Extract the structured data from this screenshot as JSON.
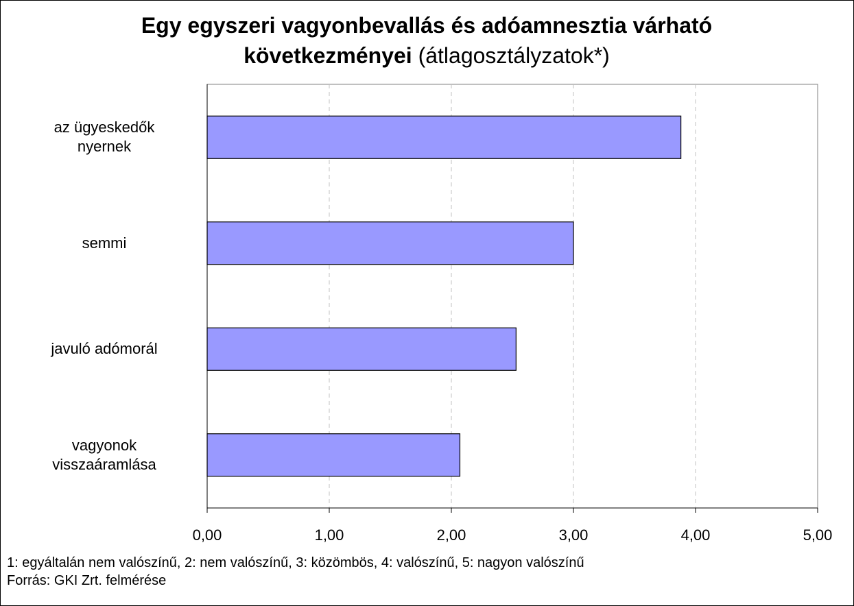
{
  "chart_data": {
    "type": "bar",
    "orientation": "horizontal",
    "title": [
      "Egy egyszeri vagyonbevallás és adóamnesztia várható",
      "következményei"
    ],
    "subtitle": "(átlagosztályzatok*)",
    "categories": [
      "az ügyeskedők\nnyernek",
      "semmi",
      "javuló adómorál",
      "vagyonok\nvisszaáramlása"
    ],
    "values": [
      3.88,
      3.0,
      2.53,
      2.07
    ],
    "color": "#9999ff",
    "xlim": [
      0,
      5
    ],
    "xticks": [
      {
        "value": 0,
        "label": "0,00"
      },
      {
        "value": 1,
        "label": "1,00"
      },
      {
        "value": 2,
        "label": "2,00"
      },
      {
        "value": 3,
        "label": "3,00"
      },
      {
        "value": 4,
        "label": "4,00"
      },
      {
        "value": 5,
        "label": "5,00"
      }
    ],
    "grid": true,
    "note": "1: egyáltalán nem valószínű, 2: nem valószínű, 3: közömbös, 4: valószínű, 5: nagyon valószínű",
    "source": "Forrás: GKI Zrt. felmérése"
  }
}
